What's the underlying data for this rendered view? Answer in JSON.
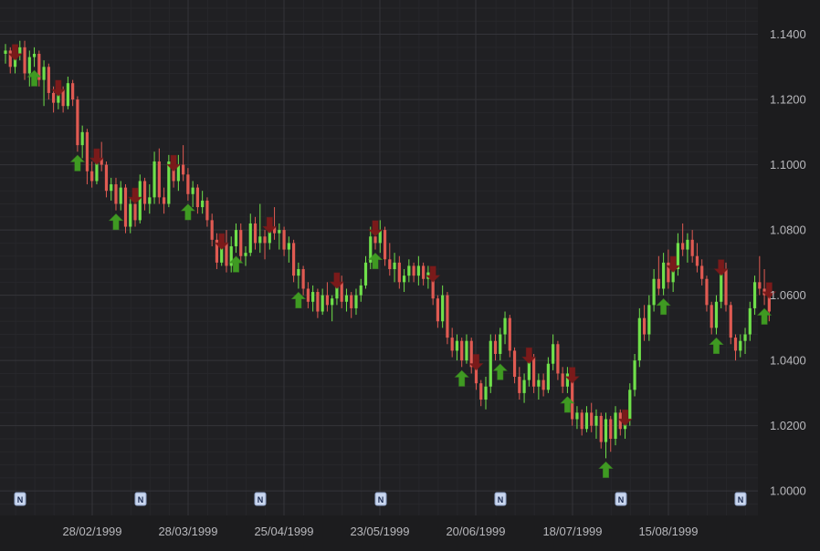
{
  "chart_data": {
    "type": "candlestick",
    "x_tick_labels": [
      "28/02/1999",
      "28/03/1999",
      "25/04/1999",
      "23/05/1999",
      "20/06/1999",
      "18/07/1999",
      "15/08/1999"
    ],
    "y_tick_labels": [
      "1.1400",
      "1.1200",
      "1.1000",
      "1.0800",
      "1.0600",
      "1.0400",
      "1.0200",
      "1.0000"
    ],
    "y_ticks": [
      1.14,
      1.12,
      1.1,
      1.08,
      1.06,
      1.04,
      1.02,
      1.0
    ],
    "ylim": [
      0.9925,
      1.1505
    ],
    "news_marker_label": "N",
    "news_marker_count": 7,
    "grid": true,
    "colors": {
      "background": "#1c1c1e",
      "plot_background": "#202023",
      "grid_major": "#34343a",
      "grid_minor": "#27272b",
      "axis_text": "#b8b8bc",
      "up_candle": "#6fe04a",
      "down_candle": "#e05a52",
      "buy_arrow": "#3f9a22",
      "sell_arrow": "#7a1a1a",
      "news_marker_fill": "#c9d6ee",
      "news_marker_text": "#1a2a50"
    },
    "series_ohlc": [
      [
        1.134,
        1.137,
        1.131,
        1.135
      ],
      [
        1.135,
        1.136,
        1.128,
        1.13
      ],
      [
        1.13,
        1.136,
        1.128,
        1.134
      ],
      [
        1.134,
        1.138,
        1.132,
        1.136
      ],
      [
        1.136,
        1.138,
        1.126,
        1.128
      ],
      [
        1.128,
        1.135,
        1.124,
        1.133
      ],
      [
        1.133,
        1.136,
        1.13,
        1.134
      ],
      [
        1.134,
        1.135,
        1.124,
        1.126
      ],
      [
        1.126,
        1.132,
        1.118,
        1.13
      ],
      [
        1.13,
        1.131,
        1.12,
        1.122
      ],
      [
        1.122,
        1.124,
        1.116,
        1.119
      ],
      [
        1.119,
        1.125,
        1.117,
        1.123
      ],
      [
        1.123,
        1.124,
        1.116,
        1.118
      ],
      [
        1.118,
        1.127,
        1.117,
        1.125
      ],
      [
        1.125,
        1.126,
        1.118,
        1.12
      ],
      [
        1.12,
        1.121,
        1.104,
        1.106
      ],
      [
        1.106,
        1.112,
        1.102,
        1.11
      ],
      [
        1.11,
        1.111,
        1.094,
        1.098
      ],
      [
        1.098,
        1.101,
        1.093,
        1.095
      ],
      [
        1.095,
        1.104,
        1.094,
        1.102
      ],
      [
        1.102,
        1.107,
        1.098,
        1.1
      ],
      [
        1.1,
        1.101,
        1.09,
        1.092
      ],
      [
        1.092,
        1.096,
        1.089,
        1.094
      ],
      [
        1.094,
        1.096,
        1.086,
        1.088
      ],
      [
        1.088,
        1.095,
        1.086,
        1.093
      ],
      [
        1.093,
        1.094,
        1.079,
        1.081
      ],
      [
        1.081,
        1.09,
        1.079,
        1.088
      ],
      [
        1.088,
        1.092,
        1.081,
        1.083
      ],
      [
        1.083,
        1.097,
        1.082,
        1.095
      ],
      [
        1.095,
        1.096,
        1.086,
        1.088
      ],
      [
        1.088,
        1.094,
        1.085,
        1.09
      ],
      [
        1.09,
        1.104,
        1.088,
        1.101
      ],
      [
        1.101,
        1.105,
        1.088,
        1.09
      ],
      [
        1.09,
        1.093,
        1.085,
        1.088
      ],
      [
        1.088,
        1.103,
        1.087,
        1.101
      ],
      [
        1.101,
        1.102,
        1.093,
        1.095
      ],
      [
        1.095,
        1.103,
        1.092,
        1.1
      ],
      [
        1.1,
        1.106,
        1.095,
        1.097
      ],
      [
        1.097,
        1.099,
        1.089,
        1.091
      ],
      [
        1.091,
        1.095,
        1.087,
        1.093
      ],
      [
        1.093,
        1.094,
        1.085,
        1.087
      ],
      [
        1.087,
        1.092,
        1.085,
        1.089
      ],
      [
        1.089,
        1.09,
        1.081,
        1.083
      ],
      [
        1.083,
        1.085,
        1.075,
        1.077
      ],
      [
        1.077,
        1.079,
        1.068,
        1.07
      ],
      [
        1.07,
        1.078,
        1.069,
        1.076
      ],
      [
        1.076,
        1.08,
        1.067,
        1.069
      ],
      [
        1.069,
        1.078,
        1.067,
        1.075
      ],
      [
        1.075,
        1.082,
        1.073,
        1.08
      ],
      [
        1.08,
        1.082,
        1.07,
        1.072
      ],
      [
        1.072,
        1.075,
        1.069,
        1.073
      ],
      [
        1.073,
        1.085,
        1.072,
        1.082
      ],
      [
        1.082,
        1.084,
        1.074,
        1.076
      ],
      [
        1.076,
        1.088,
        1.073,
        1.078
      ],
      [
        1.078,
        1.08,
        1.071,
        1.076
      ],
      [
        1.076,
        1.083,
        1.074,
        1.081
      ],
      [
        1.081,
        1.087,
        1.077,
        1.079
      ],
      [
        1.079,
        1.082,
        1.074,
        1.08
      ],
      [
        1.08,
        1.081,
        1.072,
        1.074
      ],
      [
        1.074,
        1.078,
        1.07,
        1.076
      ],
      [
        1.076,
        1.077,
        1.064,
        1.066
      ],
      [
        1.066,
        1.07,
        1.062,
        1.068
      ],
      [
        1.068,
        1.069,
        1.06,
        1.062
      ],
      [
        1.062,
        1.064,
        1.056,
        1.058
      ],
      [
        1.058,
        1.063,
        1.055,
        1.061
      ],
      [
        1.061,
        1.062,
        1.053,
        1.055
      ],
      [
        1.055,
        1.062,
        1.054,
        1.06
      ],
      [
        1.06,
        1.064,
        1.055,
        1.057
      ],
      [
        1.057,
        1.06,
        1.052,
        1.059
      ],
      [
        1.059,
        1.066,
        1.057,
        1.064
      ],
      [
        1.064,
        1.066,
        1.056,
        1.058
      ],
      [
        1.058,
        1.062,
        1.055,
        1.06
      ],
      [
        1.06,
        1.061,
        1.053,
        1.056
      ],
      [
        1.056,
        1.062,
        1.054,
        1.06
      ],
      [
        1.06,
        1.065,
        1.058,
        1.063
      ],
      [
        1.063,
        1.072,
        1.062,
        1.07
      ],
      [
        1.07,
        1.081,
        1.068,
        1.078
      ],
      [
        1.078,
        1.082,
        1.074,
        1.076
      ],
      [
        1.076,
        1.083,
        1.073,
        1.08
      ],
      [
        1.08,
        1.081,
        1.069,
        1.071
      ],
      [
        1.071,
        1.076,
        1.066,
        1.068
      ],
      [
        1.068,
        1.073,
        1.064,
        1.07
      ],
      [
        1.07,
        1.072,
        1.062,
        1.064
      ],
      [
        1.064,
        1.068,
        1.061,
        1.066
      ],
      [
        1.066,
        1.071,
        1.064,
        1.069
      ],
      [
        1.069,
        1.07,
        1.064,
        1.066
      ],
      [
        1.066,
        1.072,
        1.063,
        1.069
      ],
      [
        1.069,
        1.07,
        1.063,
        1.065
      ],
      [
        1.065,
        1.069,
        1.062,
        1.067
      ],
      [
        1.067,
        1.068,
        1.057,
        1.059
      ],
      [
        1.059,
        1.06,
        1.05,
        1.052
      ],
      [
        1.052,
        1.063,
        1.05,
        1.06
      ],
      [
        1.06,
        1.061,
        1.045,
        1.047
      ],
      [
        1.047,
        1.05,
        1.041,
        1.043
      ],
      [
        1.043,
        1.048,
        1.04,
        1.046
      ],
      [
        1.046,
        1.047,
        1.038,
        1.04
      ],
      [
        1.04,
        1.048,
        1.039,
        1.046
      ],
      [
        1.046,
        1.047,
        1.036,
        1.038
      ],
      [
        1.038,
        1.041,
        1.031,
        1.033
      ],
      [
        1.033,
        1.034,
        1.026,
        1.028
      ],
      [
        1.028,
        1.035,
        1.025,
        1.032
      ],
      [
        1.032,
        1.048,
        1.03,
        1.046
      ],
      [
        1.046,
        1.048,
        1.04,
        1.042
      ],
      [
        1.042,
        1.05,
        1.04,
        1.048
      ],
      [
        1.048,
        1.055,
        1.045,
        1.053
      ],
      [
        1.053,
        1.054,
        1.041,
        1.043
      ],
      [
        1.043,
        1.044,
        1.033,
        1.035
      ],
      [
        1.035,
        1.038,
        1.028,
        1.03
      ],
      [
        1.03,
        1.036,
        1.027,
        1.034
      ],
      [
        1.034,
        1.043,
        1.032,
        1.041
      ],
      [
        1.041,
        1.042,
        1.03,
        1.032
      ],
      [
        1.032,
        1.036,
        1.028,
        1.034
      ],
      [
        1.034,
        1.036,
        1.029,
        1.031
      ],
      [
        1.031,
        1.041,
        1.03,
        1.039
      ],
      [
        1.039,
        1.048,
        1.037,
        1.045
      ],
      [
        1.045,
        1.046,
        1.034,
        1.036
      ],
      [
        1.036,
        1.038,
        1.03,
        1.032
      ],
      [
        1.032,
        1.038,
        1.03,
        1.036
      ],
      [
        1.036,
        1.037,
        1.02,
        1.022
      ],
      [
        1.022,
        1.026,
        1.019,
        1.024
      ],
      [
        1.024,
        1.025,
        1.017,
        1.019
      ],
      [
        1.019,
        1.026,
        1.018,
        1.024
      ],
      [
        1.024,
        1.027,
        1.018,
        1.02
      ],
      [
        1.02,
        1.025,
        1.016,
        1.023
      ],
      [
        1.023,
        1.024,
        1.013,
        1.015
      ],
      [
        1.015,
        1.024,
        1.01,
        1.022
      ],
      [
        1.022,
        1.023,
        1.012,
        1.016
      ],
      [
        1.016,
        1.026,
        1.014,
        1.024
      ],
      [
        1.024,
        1.025,
        1.017,
        1.019
      ],
      [
        1.019,
        1.024,
        1.016,
        1.022
      ],
      [
        1.022,
        1.033,
        1.02,
        1.031
      ],
      [
        1.031,
        1.042,
        1.029,
        1.04
      ],
      [
        1.04,
        1.056,
        1.038,
        1.053
      ],
      [
        1.053,
        1.057,
        1.046,
        1.048
      ],
      [
        1.048,
        1.06,
        1.046,
        1.057
      ],
      [
        1.057,
        1.068,
        1.055,
        1.065
      ],
      [
        1.065,
        1.072,
        1.06,
        1.062
      ],
      [
        1.062,
        1.073,
        1.06,
        1.07
      ],
      [
        1.07,
        1.074,
        1.062,
        1.064
      ],
      [
        1.064,
        1.071,
        1.061,
        1.068
      ],
      [
        1.068,
        1.079,
        1.066,
        1.076
      ],
      [
        1.076,
        1.082,
        1.072,
        1.074
      ],
      [
        1.074,
        1.079,
        1.07,
        1.077
      ],
      [
        1.077,
        1.08,
        1.07,
        1.072
      ],
      [
        1.072,
        1.076,
        1.067,
        1.069
      ],
      [
        1.069,
        1.071,
        1.063,
        1.065
      ],
      [
        1.065,
        1.066,
        1.055,
        1.057
      ],
      [
        1.057,
        1.058,
        1.048,
        1.05
      ],
      [
        1.05,
        1.06,
        1.048,
        1.058
      ],
      [
        1.058,
        1.07,
        1.056,
        1.068
      ],
      [
        1.068,
        1.07,
        1.055,
        1.057
      ],
      [
        1.057,
        1.058,
        1.045,
        1.047
      ],
      [
        1.047,
        1.048,
        1.04,
        1.043
      ],
      [
        1.043,
        1.048,
        1.041,
        1.046
      ],
      [
        1.046,
        1.05,
        1.042,
        1.048
      ],
      [
        1.048,
        1.058,
        1.046,
        1.056
      ],
      [
        1.056,
        1.066,
        1.054,
        1.064
      ],
      [
        1.064,
        1.072,
        1.06,
        1.062
      ],
      [
        1.062,
        1.068,
        1.057,
        1.06
      ],
      [
        1.06,
        1.063,
        1.052,
        1.055
      ]
    ],
    "buy_signals": [
      6,
      15,
      23,
      38,
      48,
      61,
      77,
      95,
      103,
      117,
      125,
      137,
      148,
      158
    ],
    "sell_signals": [
      2,
      11,
      19,
      27,
      35,
      45,
      55,
      69,
      77,
      89,
      98,
      109,
      118,
      129,
      139,
      149,
      159
    ]
  }
}
